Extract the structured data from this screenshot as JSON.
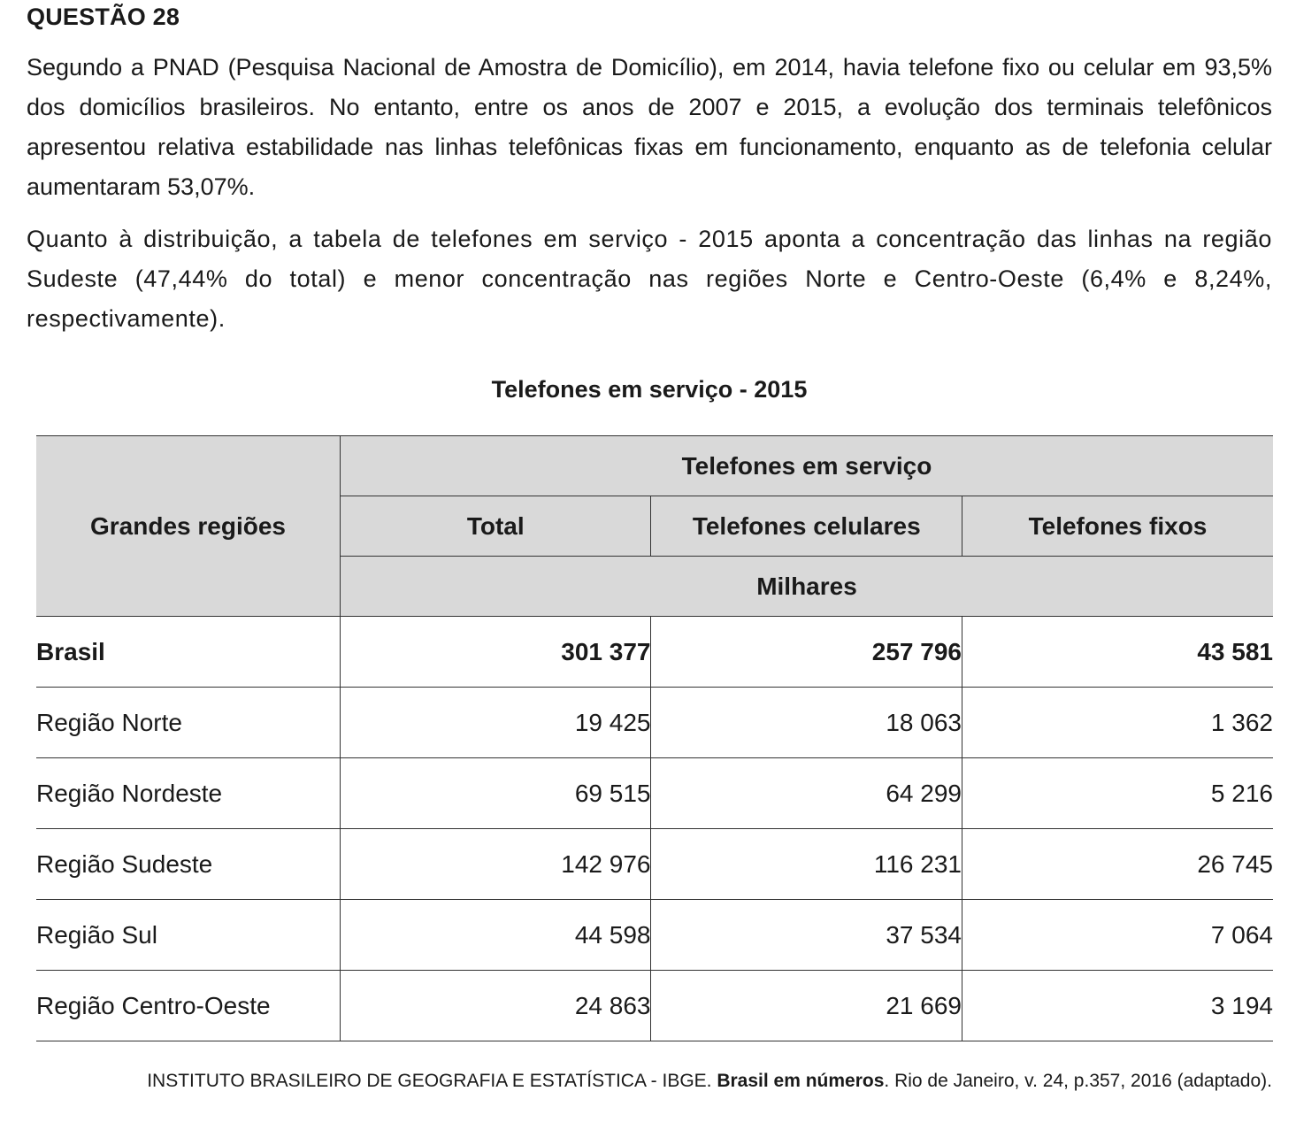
{
  "question": {
    "title": "QUESTÃO 28",
    "paragraph1": "Segundo a PNAD (Pesquisa Nacional de Amostra de Domicílio), em 2014, havia telefone fixo ou celular em 93,5% dos domicílios brasileiros. No entanto, entre os anos de 2007 e 2015, a evolução dos terminais telefônicos apresentou relativa estabilidade nas linhas telefônicas fixas em funcionamento, enquanto as de telefonia celular aumentaram 53,07%.",
    "paragraph2": "Quanto à distribuição, a tabela de telefones em serviço - 2015 aponta a concentração das linhas na região Sudeste (47,44% do total) e menor concentração nas regiões Norte e Centro-Oeste (6,4% e 8,24%, respectivamente)."
  },
  "table": {
    "title": "Telefones em serviço - 2015",
    "header": {
      "regions_label": "Grandes regiões",
      "group_label": "Telefones em serviço",
      "columns": [
        "Total",
        "Telefones celulares",
        "Telefones fixos"
      ],
      "unit": "Milhares"
    },
    "rows": [
      {
        "region": "Brasil",
        "total": "301 377",
        "cell": "257 796",
        "fixed": "43 581"
      },
      {
        "region": "Região Norte",
        "total": "19 425",
        "cell": "18 063",
        "fixed": "1 362"
      },
      {
        "region": "Região Nordeste",
        "total": "69 515",
        "cell": "64 299",
        "fixed": "5 216"
      },
      {
        "region": "Região Sudeste",
        "total": "142 976",
        "cell": "116 231",
        "fixed": "26 745"
      },
      {
        "region": "Região Sul",
        "total": "44 598",
        "cell": "37 534",
        "fixed": "7 064"
      },
      {
        "region": "Região Centro-Oeste",
        "total": "24 863",
        "cell": "21 669",
        "fixed": "3 194"
      }
    ]
  },
  "source": {
    "prefix": "INSTITUTO BRASILEIRO DE GEOGRAFIA E ESTATÍSTICA - IBGE. ",
    "work": "Brasil em números",
    "suffix": ". Rio de Janeiro, v. 24, p.357,  2016 (adaptado)."
  }
}
